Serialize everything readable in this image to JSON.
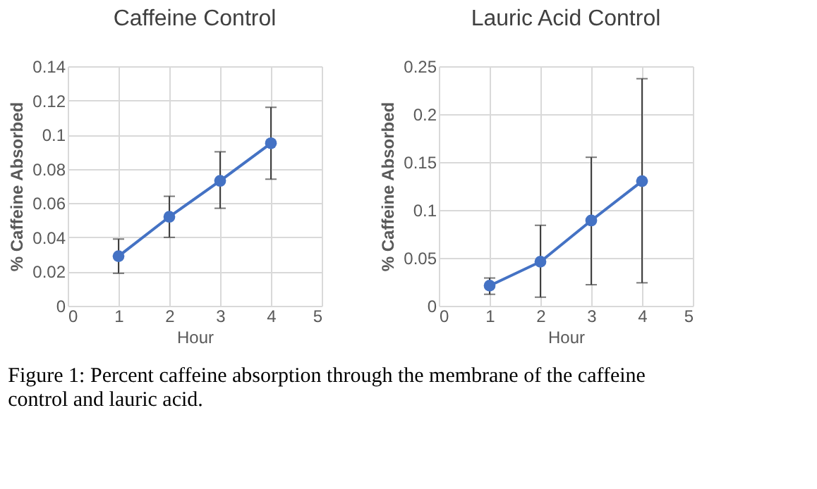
{
  "chart_data": [
    {
      "type": "line",
      "title": "Caffeine Control",
      "xlabel": "Hour",
      "ylabel": "% Caffeine Absorbed",
      "x": [
        1,
        2,
        3,
        4
      ],
      "xlim": [
        0,
        5
      ],
      "xticks": [
        0,
        1,
        2,
        3,
        4,
        5
      ],
      "ylim": [
        0,
        0.14
      ],
      "yticks": [
        0,
        0.02,
        0.04,
        0.06,
        0.08,
        0.1,
        0.12,
        0.14
      ],
      "grid": true,
      "marker": "circle",
      "line_style": "solid",
      "series": [
        {
          "color": "#4472c4",
          "values": [
            0.029,
            0.052,
            0.073,
            0.095
          ],
          "errors": [
            [
              0.019,
              0.039
            ],
            [
              0.04,
              0.064
            ],
            [
              0.057,
              0.09
            ],
            [
              0.074,
              0.116
            ]
          ]
        }
      ]
    },
    {
      "type": "line",
      "title": "Lauric Acid Control",
      "xlabel": "Hour",
      "ylabel": "% Caffeine Absorbed",
      "x": [
        1,
        2,
        3,
        4
      ],
      "xlim": [
        0,
        5
      ],
      "xticks": [
        0,
        1,
        2,
        3,
        4,
        5
      ],
      "ylim": [
        0,
        0.25
      ],
      "yticks": [
        0,
        0.05,
        0.1,
        0.15,
        0.2,
        0.25
      ],
      "grid": true,
      "marker": "circle",
      "line_style": "solid",
      "annotations": [
        "Figure 1: Percent caffeine absorption through the membrane of the caffeine control and lauric acid."
      ],
      "series": [
        {
          "color": "#4472c4",
          "values": [
            0.021,
            0.046,
            0.089,
            0.13
          ],
          "errors": [
            [
              0.012,
              0.029
            ],
            [
              0.009,
              0.084
            ],
            [
              0.022,
              0.155
            ],
            [
              0.024,
              0.237
            ]
          ]
        }
      ]
    }
  ]
}
